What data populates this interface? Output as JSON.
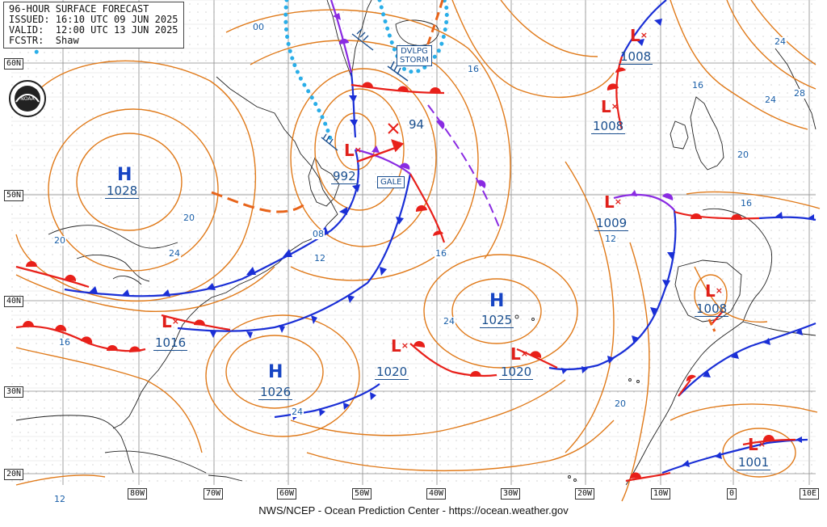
{
  "header": {
    "line1": "96-HOUR SURFACE FORECAST",
    "line2": "ISSUED: 16:10 UTC 09 JUN 2025",
    "line3": "VALID:  12:00 UTC 13 JUN 2025",
    "line4": "FCSTR:  Shaw"
  },
  "credit": "NWS/NCEP - Ocean Prediction Center - https://ocean.weather.gov",
  "latitudes": [
    "60N",
    "50N",
    "40N",
    "30N",
    "20N"
  ],
  "longitudes": [
    "80W",
    "70W",
    "60W",
    "50W",
    "40W",
    "30W",
    "20W",
    "10W",
    "0",
    "10E"
  ],
  "highs": [
    {
      "letter": "H",
      "pressure": "1028"
    },
    {
      "letter": "H",
      "pressure": "1026"
    },
    {
      "letter": "H",
      "pressure": "1025"
    }
  ],
  "lows": [
    {
      "letter": "L",
      "pressure": "992"
    },
    {
      "letter": "L",
      "pressure": "1008"
    },
    {
      "letter": "L",
      "pressure": "1008"
    },
    {
      "letter": "L",
      "pressure": "1009"
    },
    {
      "letter": "L",
      "pressure": "1008"
    },
    {
      "letter": "L",
      "pressure": "1016"
    },
    {
      "letter": "L",
      "pressure": "1020"
    },
    {
      "letter": "L",
      "pressure": "1020"
    },
    {
      "letter": "L",
      "pressure": "1001"
    }
  ],
  "warnings": {
    "gale": "GALE",
    "developing_line1": "DVLPG",
    "developing_line2": "STORM"
  },
  "forecast_position_pressure": "94",
  "isobar_labels": [
    "00",
    "16",
    "16",
    "24",
    "28",
    "24",
    "20",
    "16",
    "12",
    "20",
    "24",
    "08",
    "12",
    "16",
    "24",
    "16",
    "24",
    "20",
    "12"
  ],
  "colors": {
    "isobar": "#e07a1a",
    "cold_front": "#1a2fd6",
    "warm_front": "#e8201a",
    "occluded_front": "#8a2be2",
    "ice_edge": "#2aaee8",
    "coast": "#222222",
    "grid": "#7a7a7a",
    "label": "#1a4f8f"
  },
  "logo": "noaa-logo-icon"
}
